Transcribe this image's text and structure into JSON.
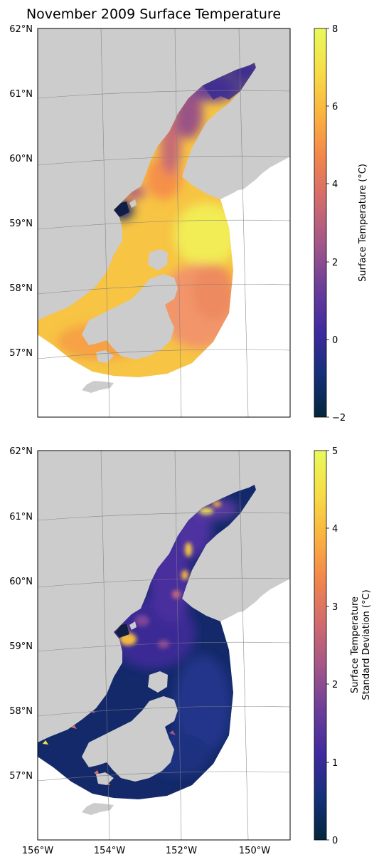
{
  "figure": {
    "title": "November 2009 Surface Temperature"
  },
  "panels": [
    {
      "id": "mean",
      "lat_ticks": [
        "62°N",
        "61°N",
        "60°N",
        "59°N",
        "58°N",
        "57°N"
      ],
      "lon_ticks": [],
      "field": "mean-temperature",
      "colorbar": {
        "label_lines": [
          "Surface Temperature (°C)"
        ],
        "range": [
          -2,
          8
        ],
        "ticks": [
          "8",
          "6",
          "4",
          "2",
          "0",
          "−2"
        ],
        "colormap": "thermal",
        "colors": [
          "#04263b",
          "#15307a",
          "#3f2a9e",
          "#6a3d9a",
          "#a0558a",
          "#d26b6e",
          "#f2864c",
          "#fbb33f",
          "#f7dd47",
          "#e8fa5b"
        ]
      }
    },
    {
      "id": "stddev",
      "lat_ticks": [
        "62°N",
        "61°N",
        "60°N",
        "59°N",
        "58°N",
        "57°N"
      ],
      "lon_ticks": [
        "156°W",
        "154°W",
        "152°W",
        "150°W"
      ],
      "field": "standard-deviation",
      "colorbar": {
        "label_lines": [
          "Surface Temperature",
          "Standard Deviation (°C)"
        ],
        "range": [
          0,
          5
        ],
        "ticks": [
          "5",
          "4",
          "3",
          "2",
          "1",
          "0"
        ],
        "colormap": "thermal",
        "colors": [
          "#04263b",
          "#15307a",
          "#3f2a9e",
          "#6a3d9a",
          "#a0558a",
          "#d26b6e",
          "#f2864c",
          "#fbb33f",
          "#f7dd47",
          "#e8fa5b"
        ]
      }
    }
  ],
  "style": {
    "land": "#cccccc",
    "ocean": "#ffffff",
    "grid": "#808080"
  }
}
